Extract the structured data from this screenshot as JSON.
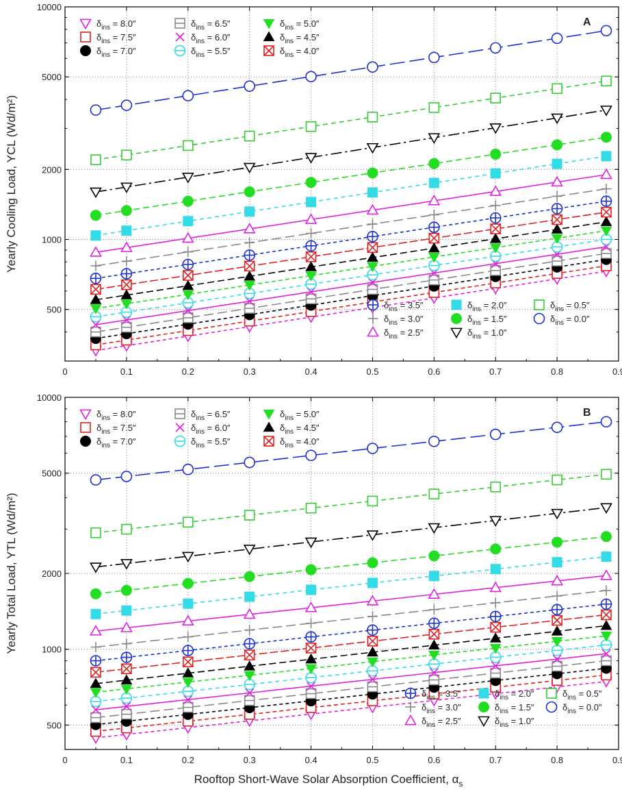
{
  "figure": {
    "xlabel": "Rooftop Short-Wave Solar Absorption Coefficient, α",
    "xlabel_sub": "s"
  },
  "chart_data": [
    {
      "type": "line",
      "panel": "A",
      "ylabel": "Yearly Cooling Load, YCL (Wd/m²)",
      "yscale": "log",
      "xlim": [
        0,
        0.9
      ],
      "ylim": [
        300,
        10000
      ],
      "xticks": [
        "0",
        "0.1",
        "0.2",
        "0.3",
        "0.4",
        "0.5",
        "0.6",
        "0.7",
        "0.8",
        "0.9"
      ],
      "yticks": [
        "500",
        "1000",
        "2000",
        "5000",
        "10000"
      ],
      "x": [
        0.05,
        0.1,
        0.2,
        0.3,
        0.4,
        0.5,
        0.6,
        0.7,
        0.8,
        0.88
      ],
      "series": [
        {
          "name": "δins = 0.0″",
          "thickness": "0.0″",
          "start": 3600,
          "end": 7900
        },
        {
          "name": "δins = 0.5″",
          "thickness": "0.5″",
          "start": 2200,
          "end": 4800
        },
        {
          "name": "δins = 1.0″",
          "thickness": "1.0″",
          "start": 1600,
          "end": 3600
        },
        {
          "name": "δins = 1.5″",
          "thickness": "1.5″",
          "start": 1270,
          "end": 2750
        },
        {
          "name": "δins = 2.0″",
          "thickness": "2.0″",
          "start": 1040,
          "end": 2280
        },
        {
          "name": "δins = 2.5″",
          "thickness": "2.5″",
          "start": 880,
          "end": 1900
        },
        {
          "name": "δins = 3.0″",
          "thickness": "3.0″",
          "start": 770,
          "end": 1650
        },
        {
          "name": "δins = 3.5″",
          "thickness": "3.5″",
          "start": 680,
          "end": 1460
        },
        {
          "name": "δins = 4.0″",
          "thickness": "4.0″",
          "start": 610,
          "end": 1310
        },
        {
          "name": "δins = 4.5″",
          "thickness": "4.5″",
          "start": 550,
          "end": 1190
        },
        {
          "name": "δins = 5.0″",
          "thickness": "5.0″",
          "start": 505,
          "end": 1090
        },
        {
          "name": "δins = 5.5″",
          "thickness": "5.5″",
          "start": 465,
          "end": 1000
        },
        {
          "name": "δins = 6.0″",
          "thickness": "6.0″",
          "start": 430,
          "end": 930
        },
        {
          "name": "δins = 6.5″",
          "thickness": "6.5″",
          "start": 400,
          "end": 870
        },
        {
          "name": "δins = 7.0″",
          "thickness": "7.0″",
          "start": 375,
          "end": 820
        },
        {
          "name": "δins = 7.5″",
          "thickness": "7.5″",
          "start": 352,
          "end": 770
        },
        {
          "name": "δins = 8.0″",
          "thickness": "8.0″",
          "start": 333,
          "end": 730
        }
      ]
    },
    {
      "type": "line",
      "panel": "B",
      "ylabel": "Yearly Total Load, YTL (Wd/m²)",
      "yscale": "log",
      "xlim": [
        0,
        0.9
      ],
      "ylim": [
        400,
        10000
      ],
      "xticks": [
        "0",
        "0.1",
        "0.2",
        "0.3",
        "0.4",
        "0.5",
        "0.6",
        "0.7",
        "0.8",
        "0.9"
      ],
      "yticks": [
        "500",
        "1000",
        "2000",
        "5000",
        "10000"
      ],
      "x": [
        0.05,
        0.1,
        0.2,
        0.3,
        0.4,
        0.5,
        0.6,
        0.7,
        0.8,
        0.88
      ],
      "series": [
        {
          "name": "δins = 0.0″",
          "thickness": "0.0″",
          "start": 4700,
          "end": 8000
        },
        {
          "name": "δins = 0.5″",
          "thickness": "0.5″",
          "start": 2900,
          "end": 4950
        },
        {
          "name": "δins = 1.0″",
          "thickness": "1.0″",
          "start": 2120,
          "end": 3650
        },
        {
          "name": "δins = 1.5″",
          "thickness": "1.5″",
          "start": 1660,
          "end": 2800
        },
        {
          "name": "δins = 2.0″",
          "thickness": "2.0″",
          "start": 1380,
          "end": 2330
        },
        {
          "name": "δins = 2.5″",
          "thickness": "2.5″",
          "start": 1180,
          "end": 1960
        },
        {
          "name": "δins = 3.0″",
          "thickness": "3.0″",
          "start": 1020,
          "end": 1710
        },
        {
          "name": "δins = 3.5″",
          "thickness": "3.5″",
          "start": 900,
          "end": 1510
        },
        {
          "name": "δins = 4.0″",
          "thickness": "4.0″",
          "start": 810,
          "end": 1370
        },
        {
          "name": "δins = 4.5″",
          "thickness": "4.5″",
          "start": 730,
          "end": 1240
        },
        {
          "name": "δins = 5.0″",
          "thickness": "5.0″",
          "start": 675,
          "end": 1130
        },
        {
          "name": "δins = 5.5″",
          "thickness": "5.5″",
          "start": 620,
          "end": 1040
        },
        {
          "name": "δins = 6.0″",
          "thickness": "6.0″",
          "start": 575,
          "end": 960
        },
        {
          "name": "δins = 6.5″",
          "thickness": "6.5″",
          "start": 535,
          "end": 900
        },
        {
          "name": "δins = 7.0″",
          "thickness": "7.0″",
          "start": 502,
          "end": 840
        },
        {
          "name": "δins = 7.5″",
          "thickness": "7.5″",
          "start": 472,
          "end": 790
        },
        {
          "name": "δins = 8.0″",
          "thickness": "8.0″",
          "start": 445,
          "end": 745
        }
      ]
    }
  ],
  "styles": {
    "0.0″": {
      "color": "#1a2fd0",
      "marker": "circle-open",
      "dash": "22,7"
    },
    "0.5″": {
      "color": "#33cc33",
      "marker": "square-open",
      "dash": "7,5"
    },
    "1.0″": {
      "color": "#000000",
      "marker": "triangle-down-open",
      "dash": "16,5,3,5"
    },
    "1.5″": {
      "color": "#22dd22",
      "marker": "circle-filled",
      "dash": "9,5"
    },
    "2.0″": {
      "color": "#33dbe6",
      "marker": "square-filled",
      "dash": "6,5"
    },
    "2.5″": {
      "color": "#e020e0",
      "marker": "triangle-up-open",
      "dash": ""
    },
    "3.0″": {
      "color": "#888888",
      "marker": "plus",
      "dash": "14,6"
    },
    "3.5″": {
      "color": "#1a2fd0",
      "marker": "circle-plus",
      "dash": "5,4"
    },
    "4.0″": {
      "color": "#e02020",
      "marker": "square-x",
      "dash": "12,4"
    },
    "4.5″": {
      "color": "#000000",
      "marker": "triangle-up-filled",
      "dash": "10,5"
    },
    "5.0″": {
      "color": "#22dd22",
      "marker": "triangle-down-filled",
      "dash": "6,4"
    },
    "5.5″": {
      "color": "#33dbe6",
      "marker": "circle-minus",
      "dash": "6,5"
    },
    "6.0″": {
      "color": "#e020e0",
      "marker": "x",
      "dash": ""
    },
    "6.5″": {
      "color": "#888888",
      "marker": "square-minus",
      "dash": "14,6"
    },
    "7.0″": {
      "color": "#000000",
      "marker": "circle-filled",
      "dash": "5,4"
    },
    "7.5″": {
      "color": "#e02020",
      "marker": "square-open",
      "dash": "6,4"
    },
    "8.0″": {
      "color": "#e020e0",
      "marker": "triangle-down-open",
      "dash": "5,4"
    }
  },
  "legend_top": [
    "8.0″",
    "6.5″",
    "5.0″",
    "7.5″",
    "6.0″",
    "4.5″",
    "7.0″",
    "5.5″",
    "4.0″"
  ],
  "legend_bottom": [
    "3.5″",
    "2.0″",
    "0.5″",
    "3.0″",
    "1.5″",
    "0.0″",
    "2.5″",
    "1.0″"
  ],
  "legend_symbol": "δ",
  "legend_sub": "ins",
  "legend_eq": " = "
}
